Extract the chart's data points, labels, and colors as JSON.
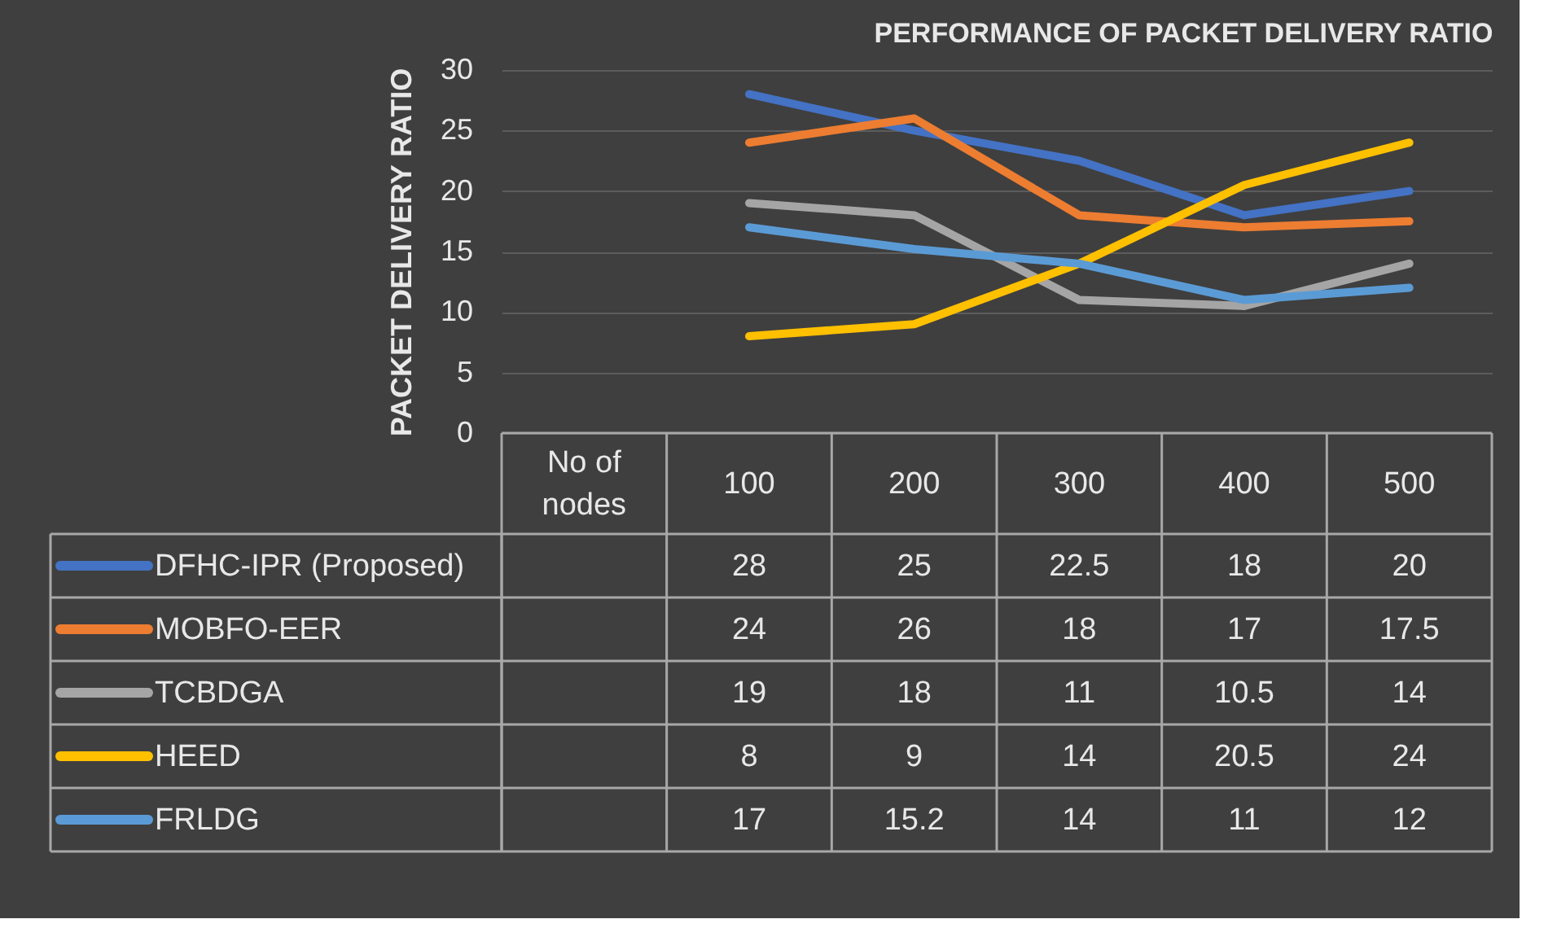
{
  "chart_data": {
    "type": "line",
    "title": "PERFORMANCE OF PACKET DELIVERY RATIO",
    "ylabel": "PACKET DELIVERY RATIO",
    "categories": [
      "No of nodes",
      "100",
      "200",
      "300",
      "400",
      "500"
    ],
    "series": [
      {
        "name": "DFHC-IPR (Proposed)",
        "color": "#4472c4",
        "values": [
          null,
          28,
          25,
          22.5,
          18,
          20
        ]
      },
      {
        "name": "MOBFO-EER",
        "color": "#ed7d31",
        "values": [
          null,
          24,
          26,
          18,
          17,
          17.5
        ]
      },
      {
        "name": "TCBDGA",
        "color": "#a5a5a5",
        "values": [
          null,
          19,
          18,
          11,
          10.5,
          14
        ]
      },
      {
        "name": "HEED",
        "color": "#ffc000",
        "values": [
          null,
          8,
          9,
          14,
          20.5,
          24
        ]
      },
      {
        "name": "FRLDG",
        "color": "#5b9bd5",
        "values": [
          null,
          17,
          15.2,
          14,
          11,
          12
        ]
      }
    ],
    "ylim": [
      0,
      30
    ],
    "yticks": [
      0,
      5,
      10,
      15,
      20,
      25,
      30
    ],
    "grid": "y",
    "legend": "bottom left",
    "data_labels": true,
    "line_style": "solid",
    "marker": "none"
  }
}
